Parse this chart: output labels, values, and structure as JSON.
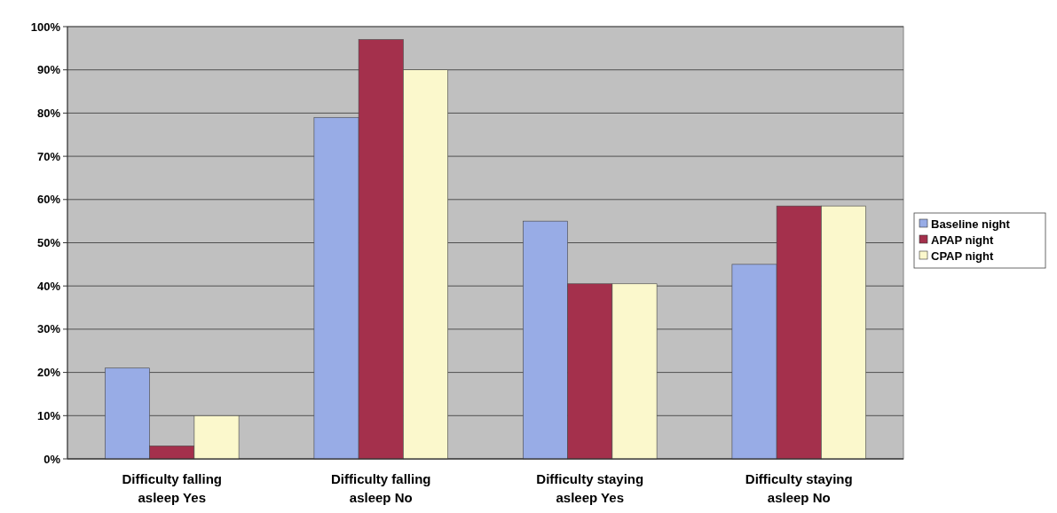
{
  "chart_data": {
    "type": "bar",
    "categories": [
      "Difficulty falling asleep Yes",
      "Difficulty falling asleep No",
      "Difficulty staying asleep Yes",
      "Difficulty staying asleep No"
    ],
    "series": [
      {
        "name": "Baseline night",
        "color": "#98ace6",
        "values": [
          21,
          79,
          55,
          45
        ]
      },
      {
        "name": "APAP night",
        "color": "#a4304c",
        "values": [
          3,
          97,
          40.5,
          58.5
        ]
      },
      {
        "name": "CPAP night",
        "color": "#fbf8cc",
        "values": [
          10,
          90,
          40.5,
          58.5
        ]
      }
    ],
    "ylim": [
      0,
      100
    ],
    "yticks": [
      {
        "value": 0,
        "label": "0%"
      },
      {
        "value": 10,
        "label": "10%"
      },
      {
        "value": 20,
        "label": "20%"
      },
      {
        "value": 30,
        "label": "30%"
      },
      {
        "value": 40,
        "label": "40%"
      },
      {
        "value": 50,
        "label": "50%"
      },
      {
        "value": 60,
        "label": "60%"
      },
      {
        "value": 70,
        "label": "70%"
      },
      {
        "value": 80,
        "label": "80%"
      },
      {
        "value": 90,
        "label": "90%"
      },
      {
        "value": 100,
        "label": "100%"
      }
    ],
    "grid": "y",
    "legend": "right"
  }
}
